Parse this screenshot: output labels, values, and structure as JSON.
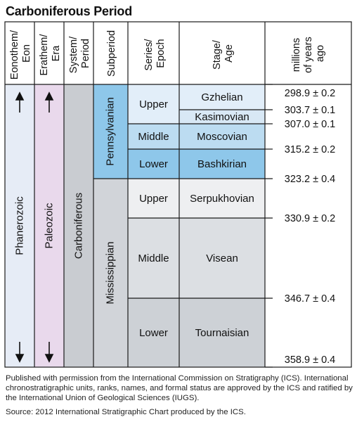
{
  "title": "Carboniferous Period",
  "headers": {
    "eon": [
      "Eonothem/",
      "Eon"
    ],
    "era": [
      "Erathem/",
      "Era"
    ],
    "system": [
      "System/",
      "Period"
    ],
    "subperiod": "Subperiod",
    "series": [
      "Series/",
      "Epoch"
    ],
    "stage": [
      "Stage/",
      "Age"
    ],
    "mya": [
      "millions",
      "of years",
      "ago"
    ]
  },
  "eon": "Phanerozoic",
  "era": "Paleozoic",
  "system": "Carboniferous",
  "subperiods": [
    "Pennsylvanian",
    "Mississippian"
  ],
  "series": [
    "Upper",
    "Middle",
    "Lower",
    "Upper",
    "Middle",
    "Lower"
  ],
  "stages": [
    "Gzhelian",
    "Kasimovian",
    "Moscovian",
    "Bashkirian",
    "Serpukhovian",
    "Visean",
    "Tournaisian"
  ],
  "ages": [
    "298.9 ± 0.2",
    "303.7 ± 0.1",
    "307.0 ± 0.1",
    "315.2 ± 0.2",
    "323.2 ± 0.4",
    "330.9 ± 0.2",
    "346.7 ± 0.4",
    "358.9 ± 0.4"
  ],
  "footnote": "Published with permission from the International Commission on Stratigraphy (ICS). International chronostratigraphic units, ranks, names, and formal status are approved by the ICS and ratified by the International Union of Geological Sciences (IUGS).",
  "source": "Source: 2012 International Stratigraphic Chart produced by the ICS.",
  "colors": {
    "eon": "#e6ecf6",
    "era": "#e9d9ec",
    "system": "#c9ccd1",
    "pennsylvanian": "#8ec7ea",
    "mississippian": "#d1d4d9",
    "upper_penn": "#e2eef9",
    "kasimovian": "#d8e8f5",
    "moscovian": "#bcdcf1",
    "bashkirian": "#8ec7ea",
    "serpukhovian": "#eeeff1",
    "visean": "#dcdfe3",
    "tournaisian": "#cdd1d6"
  }
}
